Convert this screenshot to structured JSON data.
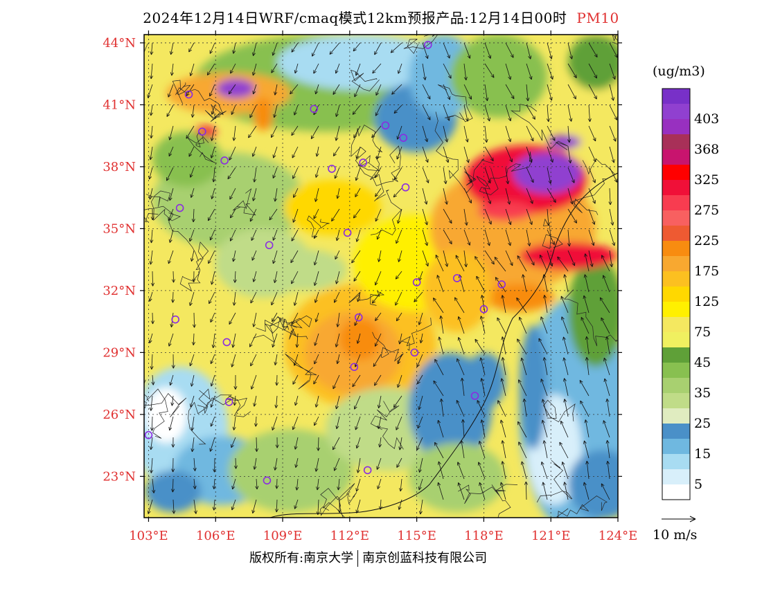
{
  "header": {
    "title": "2024年12月14日WRF/cmaq模式12km预报产品:12月14日00时",
    "species": "PM10"
  },
  "colorbar": {
    "unit": "(ug/m3)",
    "bins": [
      {
        "label": "",
        "color": "#ffffff"
      },
      {
        "label": "5",
        "color": "#d8effa"
      },
      {
        "label": "",
        "color": "#a8dcf2"
      },
      {
        "label": "15",
        "color": "#6fb8e0"
      },
      {
        "label": "",
        "color": "#4a90c8"
      },
      {
        "label": "25",
        "color": "#e0ecc0"
      },
      {
        "label": "",
        "color": "#c0dc88"
      },
      {
        "label": "35",
        "color": "#a8d070"
      },
      {
        "label": "",
        "color": "#88c050"
      },
      {
        "label": "45",
        "color": "#5fa038"
      },
      {
        "label": "",
        "color": "#f0f060"
      },
      {
        "label": "75",
        "color": "#f4e860"
      },
      {
        "label": "",
        "color": "#fff000"
      },
      {
        "label": "125",
        "color": "#ffd800"
      },
      {
        "label": "",
        "color": "#fcc020"
      },
      {
        "label": "175",
        "color": "#f8a830"
      },
      {
        "label": "",
        "color": "#f88c10"
      },
      {
        "label": "225",
        "color": "#ee5a32"
      },
      {
        "label": "",
        "color": "#f86060"
      },
      {
        "label": "275",
        "color": "#f83c50"
      },
      {
        "label": "",
        "color": "#f01038"
      },
      {
        "label": "325",
        "color": "#ff0000"
      },
      {
        "label": "",
        "color": "#c8146e"
      },
      {
        "label": "368",
        "color": "#a83058"
      },
      {
        "label": "",
        "color": "#9830c0"
      },
      {
        "label": "403",
        "color": "#9040d0"
      },
      {
        "label": "",
        "color": "#7830c8"
      }
    ]
  },
  "map": {
    "lon_labels": [
      "103°E",
      "106°E",
      "109°E",
      "112°E",
      "115°E",
      "118°E",
      "121°E",
      "124°E"
    ],
    "lat_labels": [
      "23°N",
      "26°N",
      "29°N",
      "32°N",
      "35°N",
      "38°N",
      "41°N",
      "44°N"
    ],
    "lon_values": [
      103,
      106,
      109,
      112,
      115,
      118,
      121,
      124
    ],
    "lat_values": [
      23,
      26,
      29,
      32,
      35,
      38,
      41,
      44
    ],
    "lon_range": [
      102.8,
      124
    ],
    "lat_range": [
      21,
      44.4
    ],
    "label_color": "#e03030",
    "cities": [
      {
        "lon": 115.5,
        "lat": 43.9
      },
      {
        "lon": 104.8,
        "lat": 41.5
      },
      {
        "lon": 110.4,
        "lat": 40.8
      },
      {
        "lon": 113.6,
        "lat": 40.0
      },
      {
        "lon": 114.4,
        "lat": 39.4
      },
      {
        "lon": 105.4,
        "lat": 39.7
      },
      {
        "lon": 106.4,
        "lat": 38.3
      },
      {
        "lon": 111.2,
        "lat": 37.9
      },
      {
        "lon": 112.6,
        "lat": 38.2
      },
      {
        "lon": 114.5,
        "lat": 37.0
      },
      {
        "lon": 104.4,
        "lat": 36.0
      },
      {
        "lon": 111.9,
        "lat": 34.8
      },
      {
        "lon": 108.4,
        "lat": 34.2
      },
      {
        "lon": 115.0,
        "lat": 32.4
      },
      {
        "lon": 116.8,
        "lat": 32.6
      },
      {
        "lon": 118.8,
        "lat": 32.3
      },
      {
        "lon": 118.0,
        "lat": 31.1
      },
      {
        "lon": 104.2,
        "lat": 30.6
      },
      {
        "lon": 112.4,
        "lat": 30.7
      },
      {
        "lon": 106.5,
        "lat": 29.5
      },
      {
        "lon": 114.9,
        "lat": 29.0
      },
      {
        "lon": 112.2,
        "lat": 28.3
      },
      {
        "lon": 106.6,
        "lat": 26.6
      },
      {
        "lon": 103.0,
        "lat": 25.0
      },
      {
        "lon": 117.6,
        "lat": 26.9
      },
      {
        "lon": 112.8,
        "lat": 23.3
      },
      {
        "lon": 108.3,
        "lat": 22.8
      }
    ]
  },
  "wind_ref": "10 m/s",
  "footer": {
    "left": "版权所有:南京大学",
    "right": "南京创蓝科技有限公司"
  }
}
